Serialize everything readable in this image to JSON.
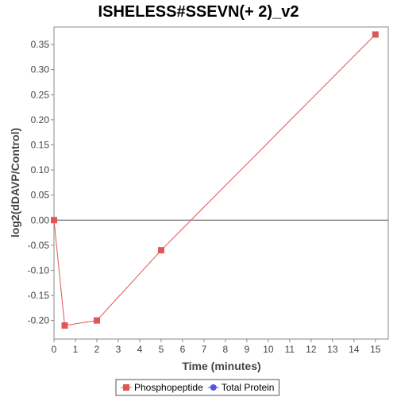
{
  "chart_data": {
    "type": "line",
    "title": "ISHELESS#SSEVN(+ 2)_v2",
    "xlabel": "Time (minutes)",
    "ylabel": "log2(dDAVP/Control)",
    "xlim": [
      0,
      15.6
    ],
    "ylim": [
      -0.237,
      0.385
    ],
    "xticks": [
      0,
      1,
      2,
      3,
      4,
      5,
      6,
      7,
      8,
      9,
      10,
      11,
      12,
      13,
      14,
      15
    ],
    "xtick_labels": [
      "0",
      "1",
      "2",
      "3",
      "4",
      "5",
      "6",
      "7",
      "8",
      "9",
      "10",
      "11",
      "12",
      "13",
      "14",
      "15"
    ],
    "yticks": [
      -0.2,
      -0.15,
      -0.1,
      -0.05,
      0,
      0.05,
      0.1,
      0.15,
      0.2,
      0.25,
      0.3,
      0.35
    ],
    "ytick_labels": [
      "-0.20",
      "-0.15",
      "-0.10",
      "-0.05",
      "0.00",
      "0.05",
      "0.10",
      "0.15",
      "0.20",
      "0.25",
      "0.30",
      "0.35"
    ],
    "zero_line": true,
    "grid": false,
    "legend_position": "bottom",
    "series": [
      {
        "name": "Phosphopeptide",
        "color": "#e05555",
        "marker": "square",
        "x": [
          0,
          0.5,
          2,
          5,
          15
        ],
        "y": [
          0.0,
          -0.21,
          -0.2,
          -0.06,
          0.37
        ]
      },
      {
        "name": "Total Protein",
        "color": "#5555e0",
        "marker": "circle",
        "x": [],
        "y": []
      }
    ]
  }
}
